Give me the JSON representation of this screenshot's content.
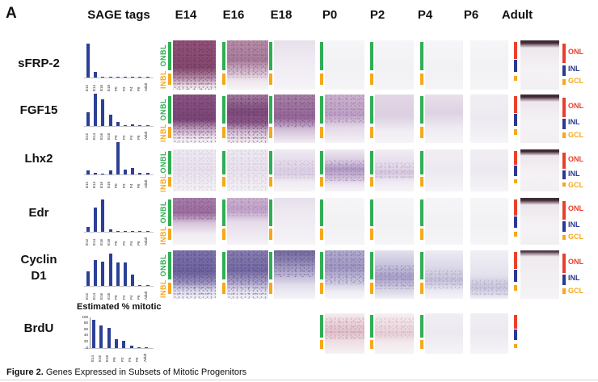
{
  "figure": {
    "panel_label": "A",
    "sage_header": "SAGE tags",
    "columns": [
      "E14",
      "E16",
      "E18",
      "P0",
      "P2",
      "P4",
      "P6",
      "Adult"
    ],
    "layer_labels": {
      "onbl": "ONBL",
      "inbl": "INBL",
      "onl": "ONL",
      "inl": "INL",
      "gcl": "GCL"
    },
    "colors": {
      "green": "#2fae54",
      "yellow": "#f6a81b",
      "red": "#e8402c",
      "blue": "#2b3990",
      "bar_chart": "#2b4096"
    },
    "caption_bold": "Figure 2.",
    "caption_text": " Genes Expressed in Subsets of Mitotic Progenitors"
  },
  "chart_data": [
    {
      "type": "bar",
      "title": "sFRP-2 SAGE tags",
      "categories": [
        "E12",
        "E14",
        "E16",
        "E18",
        "P0",
        "P2",
        "P4",
        "P6",
        "Adult"
      ],
      "values": [
        100,
        16,
        2,
        2,
        2,
        2,
        2,
        2,
        2
      ],
      "ylim": [
        0,
        100
      ],
      "grid": false
    },
    {
      "type": "bar",
      "title": "FGF15 SAGE tags",
      "categories": [
        "E12",
        "E14",
        "E16",
        "E18",
        "P0",
        "P2",
        "P4",
        "P6",
        "Adult"
      ],
      "values": [
        42,
        100,
        82,
        35,
        12,
        3,
        6,
        1,
        1
      ],
      "ylim": [
        0,
        100
      ],
      "grid": false
    },
    {
      "type": "bar",
      "title": "Lhx2 SAGE tags",
      "categories": [
        "E12",
        "E14",
        "E16",
        "E18",
        "P0",
        "P2",
        "P4",
        "P6",
        "Adult"
      ],
      "values": [
        12,
        4,
        3,
        12,
        100,
        15,
        20,
        6,
        4
      ],
      "ylim": [
        0,
        100
      ],
      "grid": false
    },
    {
      "type": "bar",
      "title": "Edr SAGE tags",
      "categories": [
        "E12",
        "E14",
        "E16",
        "E18",
        "P0",
        "P2",
        "P4",
        "P6",
        "Adult"
      ],
      "values": [
        15,
        75,
        100,
        8,
        1,
        1,
        1,
        1,
        3
      ],
      "ylim": [
        0,
        100
      ],
      "grid": false
    },
    {
      "type": "bar",
      "title": "Cyclin D1 SAGE tags",
      "categories": [
        "E12",
        "E14",
        "E16",
        "E18",
        "P0",
        "P2",
        "P4",
        "P6",
        "Adult"
      ],
      "values": [
        45,
        80,
        75,
        100,
        72,
        72,
        35,
        3,
        1
      ],
      "ylim": [
        0,
        100
      ],
      "grid": false
    },
    {
      "type": "bar",
      "title": "Estimated % mitotic",
      "categories": [
        "E14",
        "E16",
        "E18",
        "P0",
        "P2",
        "P4",
        "P6",
        "Adult"
      ],
      "values": [
        92,
        75,
        65,
        30,
        23,
        8,
        1,
        1
      ],
      "ylim": [
        0,
        100
      ],
      "yticks": [
        0,
        20,
        40,
        60,
        80,
        100
      ],
      "grid": false
    }
  ],
  "rows": [
    {
      "gene": "sFRP-2",
      "gene_lines": [
        "sFRP-2"
      ],
      "chart_index": 0,
      "layer_labels": true,
      "images": [
        {
          "stage": "E14",
          "bar": "gy",
          "pattern": "sfrp2_e14"
        },
        {
          "stage": "E16",
          "bar": "gy",
          "pattern": "sfrp2_e16"
        },
        {
          "stage": "E18",
          "bar": "gy",
          "pattern": "faint_top"
        },
        {
          "stage": "P0",
          "bar": "gy",
          "pattern": "blank"
        },
        {
          "stage": "P2",
          "bar": "gy",
          "pattern": "blank"
        },
        {
          "stage": "P4",
          "bar": "gy",
          "pattern": "blank"
        },
        {
          "stage": "P6",
          "bar": "none",
          "pattern": "blank"
        },
        {
          "stage": "Adult",
          "bar": "adult",
          "pattern": "adult_dark",
          "adult_labels": true
        }
      ]
    },
    {
      "gene": "FGF15",
      "gene_lines": [
        "FGF15"
      ],
      "chart_index": 1,
      "layer_labels": true,
      "images": [
        {
          "stage": "E14",
          "bar": "gy",
          "pattern": "fgf15_e14"
        },
        {
          "stage": "E16",
          "bar": "gy",
          "pattern": "fgf15_e16"
        },
        {
          "stage": "E18",
          "bar": "gy",
          "pattern": "fgf15_e18"
        },
        {
          "stage": "P0",
          "bar": "gy",
          "pattern": "fgf15_p0"
        },
        {
          "stage": "P2",
          "bar": "gy",
          "pattern": "faint_purple"
        },
        {
          "stage": "P4",
          "bar": "gy",
          "pattern": "fgf15_p4"
        },
        {
          "stage": "P6",
          "bar": "none",
          "pattern": "faint"
        },
        {
          "stage": "Adult",
          "bar": "adult",
          "pattern": "adult_dark",
          "adult_labels": true
        }
      ]
    },
    {
      "gene": "Lhx2",
      "gene_lines": [
        "Lhx2"
      ],
      "chart_index": 2,
      "layer_labels": true,
      "images": [
        {
          "stage": "E14",
          "bar": "gy",
          "pattern": "lhx2_light"
        },
        {
          "stage": "E16",
          "bar": "gy",
          "pattern": "lhx2_light"
        },
        {
          "stage": "E18",
          "bar": "gy",
          "pattern": "lhx2_e18"
        },
        {
          "stage": "P0",
          "bar": "gy",
          "pattern": "lhx2_p0"
        },
        {
          "stage": "P2",
          "bar": "gy",
          "pattern": "lhx2_p2"
        },
        {
          "stage": "P4",
          "bar": "gy",
          "pattern": "faint"
        },
        {
          "stage": "P6",
          "bar": "none",
          "pattern": "faint"
        },
        {
          "stage": "Adult",
          "bar": "adult",
          "pattern": "adult_dark",
          "adult_labels": true
        }
      ]
    },
    {
      "gene": "Edr",
      "gene_lines": [
        "Edr"
      ],
      "chart_index": 3,
      "layer_labels": true,
      "images": [
        {
          "stage": "E14",
          "bar": "gy",
          "pattern": "edr_e14"
        },
        {
          "stage": "E16",
          "bar": "gy",
          "pattern": "edr_e16"
        },
        {
          "stage": "E18",
          "bar": "gy",
          "pattern": "faint_top"
        },
        {
          "stage": "P0",
          "bar": "gy",
          "pattern": "blank"
        },
        {
          "stage": "P2",
          "bar": "gy",
          "pattern": "blank"
        },
        {
          "stage": "P4",
          "bar": "gy",
          "pattern": "blank"
        },
        {
          "stage": "P6",
          "bar": "none",
          "pattern": "blank"
        },
        {
          "stage": "Adult",
          "bar": "adult",
          "pattern": "adult_dark",
          "adult_labels": true
        }
      ]
    },
    {
      "gene": "Cyclin D1",
      "gene_lines": [
        "Cyclin",
        "D1"
      ],
      "chart_index": 4,
      "layer_labels": true,
      "images": [
        {
          "stage": "E14",
          "bar": "gy",
          "pattern": "cyclin_e14"
        },
        {
          "stage": "E16",
          "bar": "gy",
          "pattern": "cyclin_e16"
        },
        {
          "stage": "E18",
          "bar": "gy",
          "pattern": "cyclin_e18"
        },
        {
          "stage": "P0",
          "bar": "gy",
          "pattern": "cyclin_p0"
        },
        {
          "stage": "P2",
          "bar": "gy",
          "pattern": "cyclin_p2"
        },
        {
          "stage": "P4",
          "bar": "gy",
          "pattern": "cyclin_p4"
        },
        {
          "stage": "P6",
          "bar": "none",
          "pattern": "cyclin_p6"
        },
        {
          "stage": "Adult",
          "bar": "adult",
          "pattern": "cyclin_adult",
          "adult_labels": true
        }
      ]
    },
    {
      "gene": "BrdU",
      "gene_lines": [
        "BrdU"
      ],
      "chart_index": 5,
      "layer_labels": false,
      "chart_title": "Estimated % mitotic",
      "trailing_adult_bar": true,
      "images": [
        {
          "stage": "P0",
          "bar": "gy",
          "pattern": "brdu_p0"
        },
        {
          "stage": "P2",
          "bar": "gy",
          "pattern": "brdu_p2"
        },
        {
          "stage": "P4",
          "bar": "gy",
          "pattern": "faint"
        },
        {
          "stage": "P6",
          "bar": "none",
          "pattern": "faint"
        }
      ]
    }
  ]
}
